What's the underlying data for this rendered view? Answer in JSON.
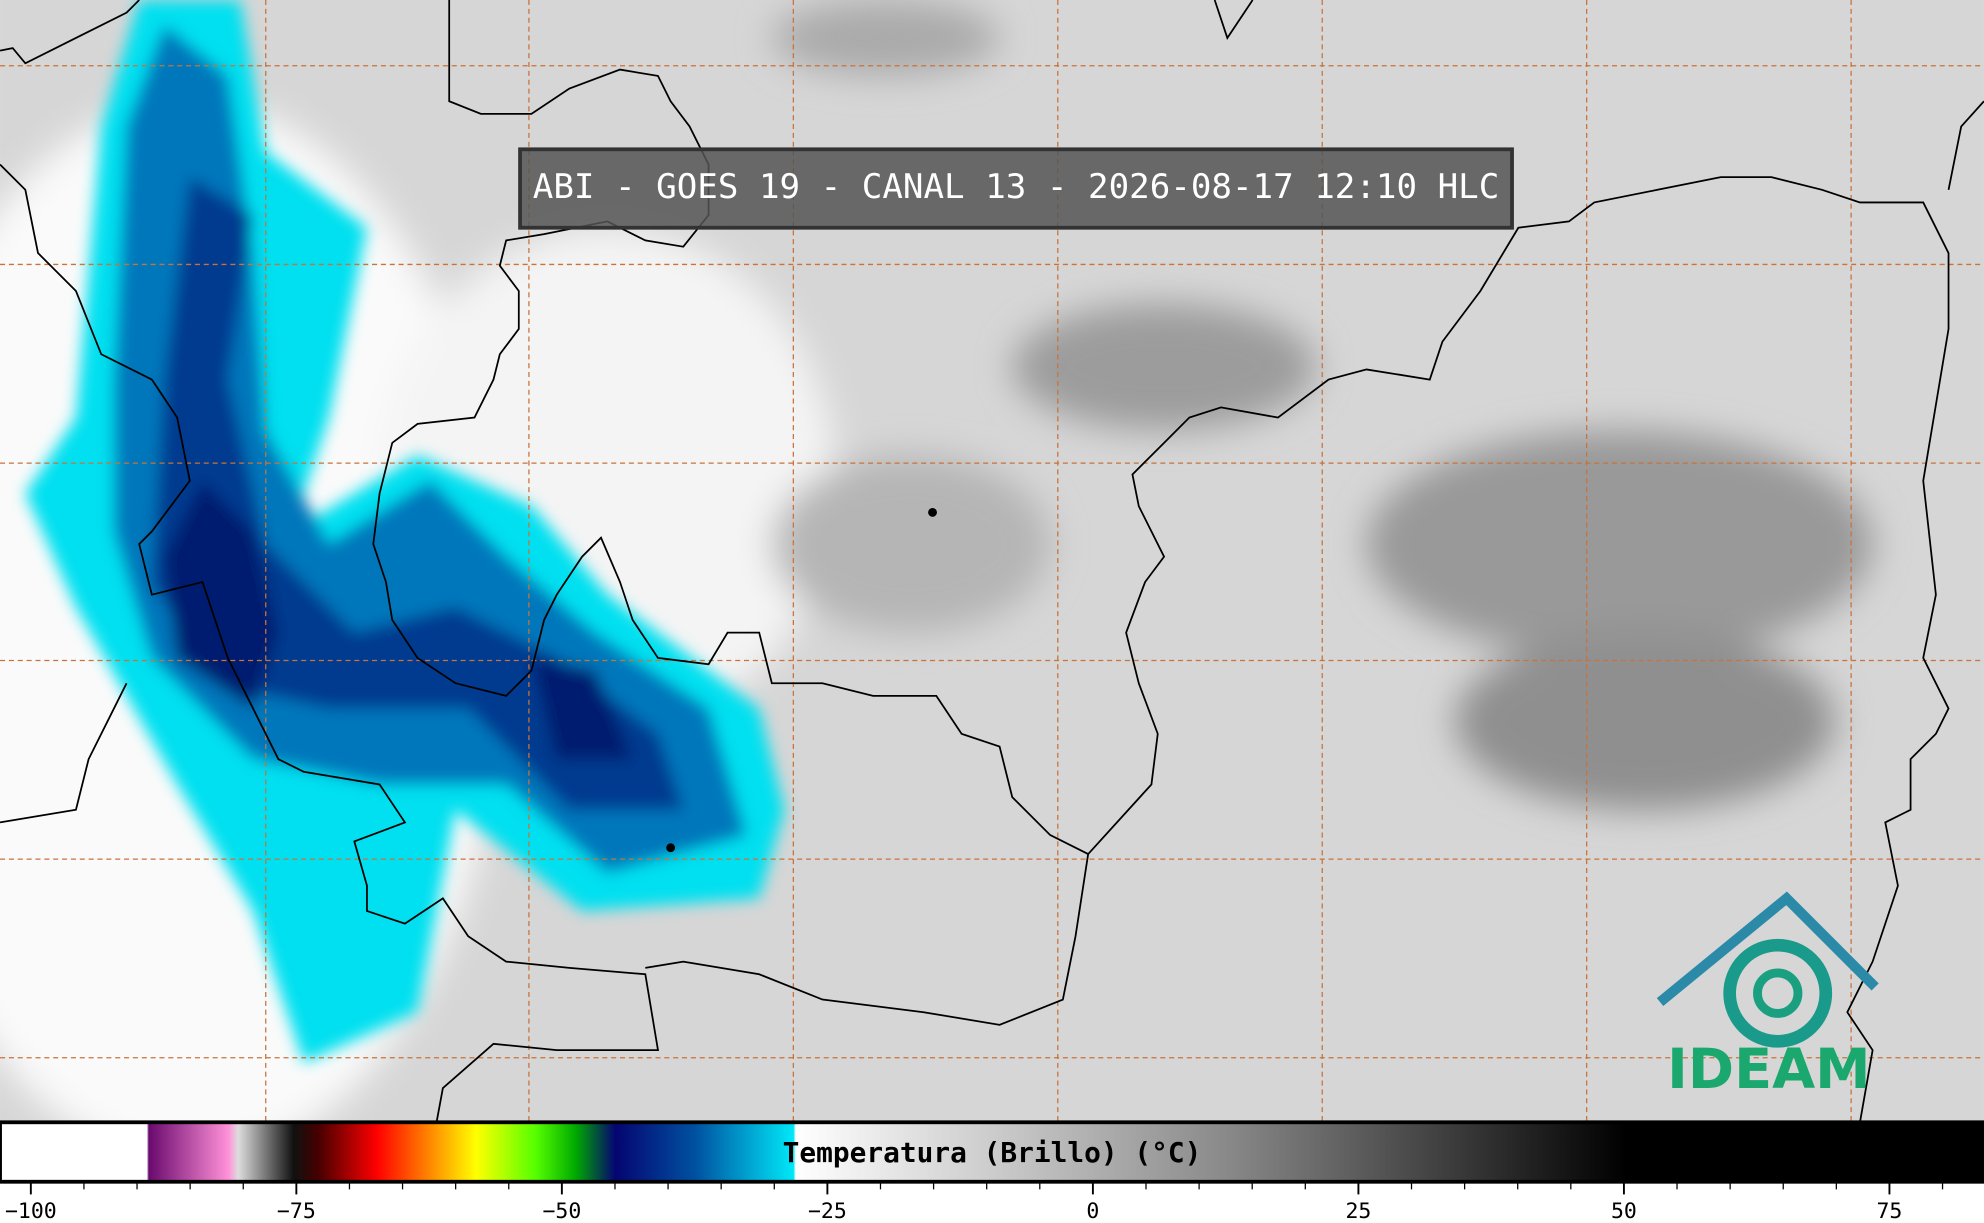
{
  "title": "ABI - GOES 19 - CANAL 13 - 2026-08-17 12:10 HLC",
  "colorbar": {
    "label": "Temperatura (Brillo) (°C)",
    "lim": [
      -102.9,
      83.9
    ],
    "ticks": [
      {
        "value": -100,
        "label": "−100"
      },
      {
        "value": -75,
        "label": "−75"
      },
      {
        "value": -50,
        "label": "−50"
      },
      {
        "value": -25,
        "label": "−25"
      },
      0,
      25,
      50,
      75
    ],
    "minor_ticks": [
      -95,
      -90,
      -85,
      -80,
      -70,
      -65,
      -60,
      -55,
      -45,
      -40,
      -35,
      -30,
      -20,
      -15,
      -10,
      -5,
      5,
      10,
      15,
      20,
      30,
      35,
      40,
      45,
      55,
      60,
      65,
      70,
      80
    ]
  },
  "logo": "IDEAM"
}
